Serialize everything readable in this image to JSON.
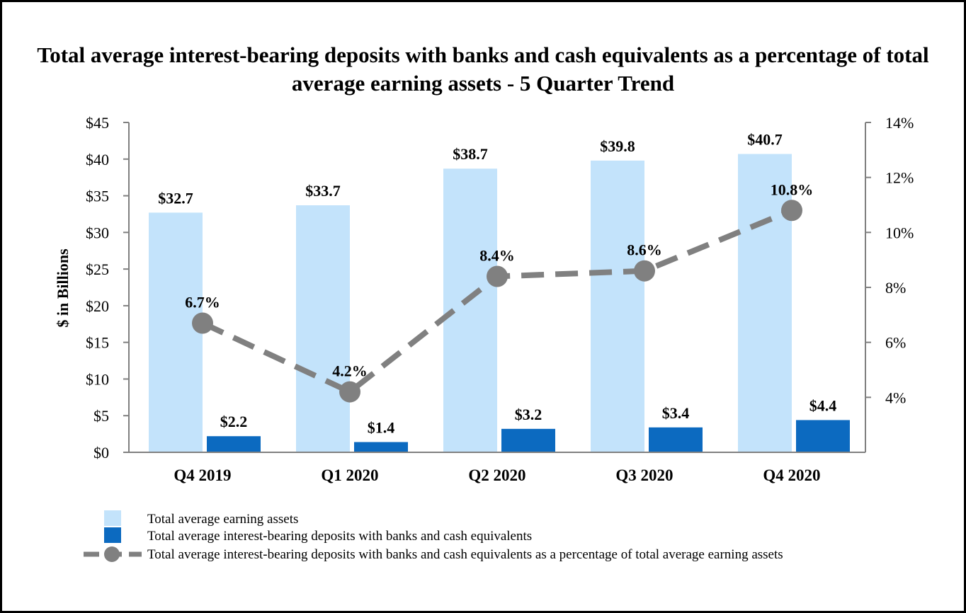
{
  "chart_data": {
    "type": "bar",
    "title": "Total average interest-bearing deposits with banks and cash equivalents as a percentage of total average earning assets - 5 Quarter Trend",
    "ylabel": "$ in Billions",
    "categories": [
      "Q4 2019",
      "Q1 2020",
      "Q2 2020",
      "Q3 2020",
      "Q4 2020"
    ],
    "ylim": [
      0,
      45
    ],
    "yticks": [
      0,
      5,
      10,
      15,
      20,
      25,
      30,
      35,
      40,
      45
    ],
    "ytick_labels": [
      "$0",
      "$5",
      "$10",
      "$15",
      "$20",
      "$25",
      "$30",
      "$35",
      "$40",
      "$45"
    ],
    "y2lim": [
      2,
      14
    ],
    "y2ticks": [
      4,
      6,
      8,
      10,
      12,
      14
    ],
    "y2tick_labels": [
      "4%",
      "6%",
      "8%",
      "10%",
      "12%",
      "14%"
    ],
    "series": [
      {
        "name": "Total average earning assets",
        "kind": "bar",
        "axis": "left",
        "color": "#c3e3fb",
        "values": [
          32.7,
          33.7,
          38.7,
          39.8,
          40.7
        ],
        "labels": [
          "$32.7",
          "$33.7",
          "$38.7",
          "$39.8",
          "$40.7"
        ]
      },
      {
        "name": "Total average interest-bearing deposits with banks and cash equivalents",
        "kind": "bar",
        "axis": "left",
        "color": "#0c6ac0",
        "values": [
          2.2,
          1.4,
          3.2,
          3.4,
          4.4
        ],
        "labels": [
          "$2.2",
          "$1.4",
          "$3.2",
          "$3.4",
          "$4.4"
        ]
      },
      {
        "name": "Total average interest-bearing deposits with banks and cash equivalents as a percentage of total average earning assets",
        "kind": "line",
        "axis": "right",
        "style": "dashed",
        "marker": "circle",
        "color": "#808080",
        "values": [
          6.7,
          4.2,
          8.4,
          8.6,
          10.8
        ],
        "labels": [
          "6.7%",
          "4.2%",
          "8.4%",
          "8.6%",
          "10.8%"
        ]
      }
    ],
    "legend": "bottom-left",
    "grid": false
  }
}
